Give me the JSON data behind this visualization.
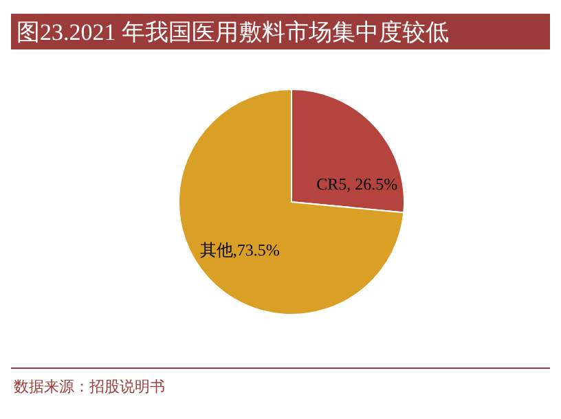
{
  "chart_data": {
    "type": "pie",
    "title": "图23.2021 年我国医用敷料市场集中度较低",
    "categories": [
      "CR5",
      "其他"
    ],
    "values": [
      26.5,
      73.5
    ],
    "colors": [
      "#b5443f",
      "#daa026"
    ],
    "value_labels": [
      ", 26.5%",
      ",73.5%"
    ],
    "annotations": [
      "数据来源：招股说明书"
    ]
  }
}
